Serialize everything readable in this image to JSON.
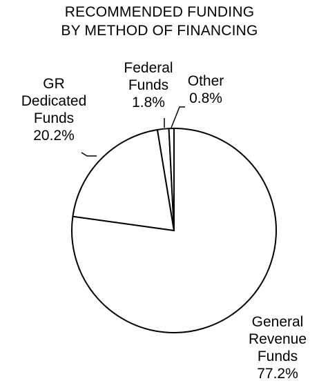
{
  "chart_data": {
    "type": "pie",
    "title_lines": [
      "RECOMMENDED FUNDING",
      "BY METHOD OF FINANCING"
    ],
    "slices": [
      {
        "name": "General Revenue Funds",
        "value": 77.2,
        "label_lines": [
          "General",
          "Revenue",
          "Funds",
          "77.2%"
        ],
        "color": "#ffffff"
      },
      {
        "name": "GR Dedicated Funds",
        "value": 20.2,
        "label_lines": [
          "GR",
          "Dedicated",
          "Funds",
          "20.2%"
        ],
        "color": "#ffffff"
      },
      {
        "name": "Federal Funds",
        "value": 1.8,
        "label_lines": [
          "Federal",
          "Funds",
          "1.8%"
        ],
        "color": "#ffffff"
      },
      {
        "name": "Other",
        "value": 0.8,
        "label_lines": [
          "Other",
          "0.8%"
        ],
        "color": "#ffffff"
      }
    ],
    "slice_outline_color": "#000000",
    "legend": "none"
  }
}
